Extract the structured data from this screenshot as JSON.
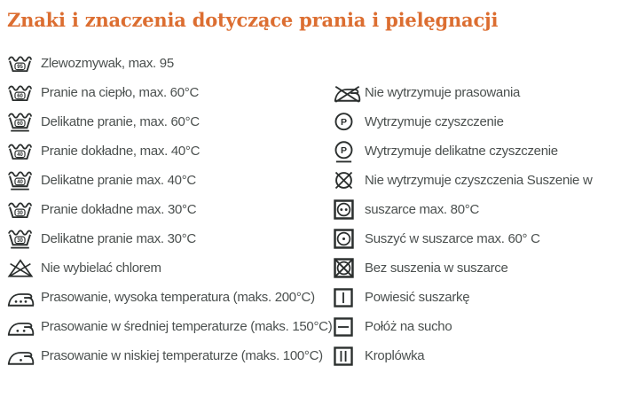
{
  "page": {
    "title": "Znaki i znaczenia dotyczące prania i pielęgnacji",
    "title_color": "#dc6e31",
    "text_color": "#4b504f",
    "icon_color": "#2b2f2e"
  },
  "left_column": {
    "items": [
      {
        "icon": "wash-tub-95",
        "value": "95",
        "label": "Zlewozmywak, max. 95"
      },
      {
        "icon": "wash-tub-60",
        "value": "60",
        "label": "Pranie na ciepło, max. 60°C"
      },
      {
        "icon": "wash-tub-60-delicate",
        "value": "60",
        "label": "Delikatne pranie, max. 60°C"
      },
      {
        "icon": "wash-tub-40",
        "value": "40",
        "label": "Pranie dokładne, max. 40°C"
      },
      {
        "icon": "wash-tub-40-delicate",
        "value": "40",
        "label": "Delikatne pranie max. 40°C"
      },
      {
        "icon": "wash-tub-30",
        "value": "30",
        "label": "Pranie dokładne max. 30°C"
      },
      {
        "icon": "wash-tub-30-delicate",
        "value": "30",
        "label": "Delikatne pranie max. 30°C"
      },
      {
        "icon": "no-bleach",
        "label": "Nie wybielać chlorem"
      },
      {
        "icon": "iron-high",
        "label": "Prasowanie, wysoka temperatura (maks. 200°C)"
      },
      {
        "icon": "iron-medium",
        "label": "Prasowanie w średniej temperaturze (maks. 150°C)"
      },
      {
        "icon": "iron-low",
        "label": "Prasowanie w niskiej temperaturze (maks. 100°C)"
      }
    ]
  },
  "right_column": {
    "items": [
      {
        "icon": "no-ironing",
        "label": "Nie wytrzymuje prasowania"
      },
      {
        "icon": "dry-clean-p",
        "value": "P",
        "label": "Wytrzymuje czyszczenie"
      },
      {
        "icon": "dry-clean-p-delicate",
        "value": "P",
        "label": "Wytrzymuje delikatne czyszczenie"
      },
      {
        "icon": "no-dry-clean",
        "label": "Nie wytrzymuje czyszczenia Suszenie w"
      },
      {
        "icon": "tumble-dry-two-dots",
        "label": "suszarce max. 80°C"
      },
      {
        "icon": "tumble-dry-one-dot",
        "label": "Suszyć w suszarce max. 60° C"
      },
      {
        "icon": "no-tumble-dry",
        "label": "Bez suszenia w suszarce"
      },
      {
        "icon": "hang-dry-line",
        "label": "Powiesić suszarkę"
      },
      {
        "icon": "dry-flat-line",
        "label": "Połóż na sucho"
      },
      {
        "icon": "drip-dry-lines",
        "label": "Kroplówka"
      }
    ]
  }
}
